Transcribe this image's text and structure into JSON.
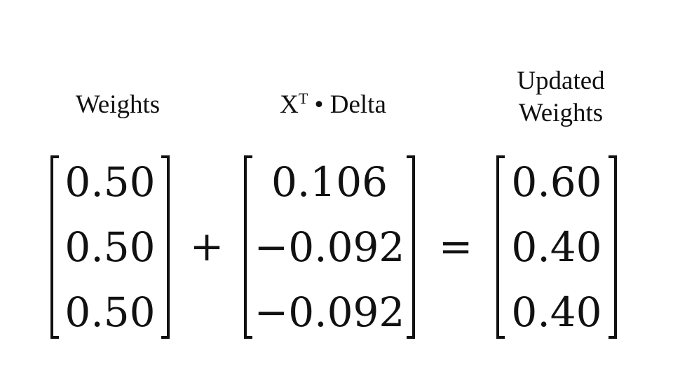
{
  "labels": {
    "weights": "Weights",
    "xt_base": "X",
    "xt_sup": "T",
    "xt_rest": " • Delta",
    "updated_line1": "Updated",
    "updated_line2": "Weights"
  },
  "matrices": {
    "weights": [
      "0.50",
      "0.50",
      "0.50"
    ],
    "delta": [
      "0.106",
      "−0.092",
      "−0.092"
    ],
    "updated": [
      "0.60",
      "0.40",
      "0.40"
    ]
  },
  "operators": {
    "plus": "+",
    "equals": "="
  }
}
